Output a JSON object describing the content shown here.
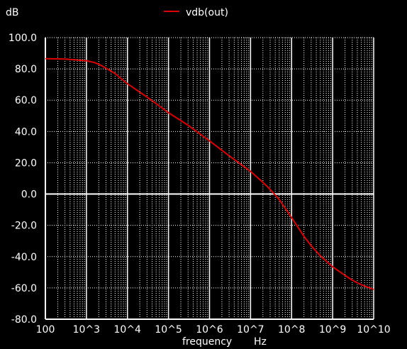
{
  "chart_data": {
    "type": "line",
    "title": "",
    "ylabel_top": "dB",
    "xlabel": "frequency",
    "xunit": "Hz",
    "x_scale": "log",
    "xlim": [
      100,
      10000000000
    ],
    "ylim": [
      -80,
      100
    ],
    "grid": true,
    "legend_position": "top-center",
    "x_tick_labels": [
      "100",
      "10^3",
      "10^4",
      "10^5",
      "10^6",
      "10^7",
      "10^8",
      "10^9",
      "10^10"
    ],
    "y_tick_labels": [
      "100.0",
      "80.0",
      "60.0",
      "40.0",
      "20.0",
      "0.0",
      "-20.0",
      "-40.0",
      "-60.0",
      "-80.0"
    ],
    "series": [
      {
        "name": "vdb(out)",
        "color": "#e00000",
        "x": [
          100,
          300,
          1000,
          1500,
          2000,
          3000,
          5000,
          10000,
          30000,
          100000,
          300000,
          1000000,
          3000000,
          10000000,
          20000000,
          30000000,
          50000000,
          100000000,
          200000000,
          300000000,
          500000000,
          1000000000,
          2000000000,
          3000000000,
          5000000000,
          10000000000
        ],
        "y": [
          86.5,
          86.3,
          85.2,
          84.2,
          83,
          80.5,
          77,
          70.5,
          62,
          52,
          44,
          34,
          24.5,
          14.5,
          7.5,
          3,
          -3.5,
          -15,
          -27,
          -33,
          -39.5,
          -46.5,
          -52,
          -55,
          -58,
          -61
        ]
      }
    ]
  }
}
